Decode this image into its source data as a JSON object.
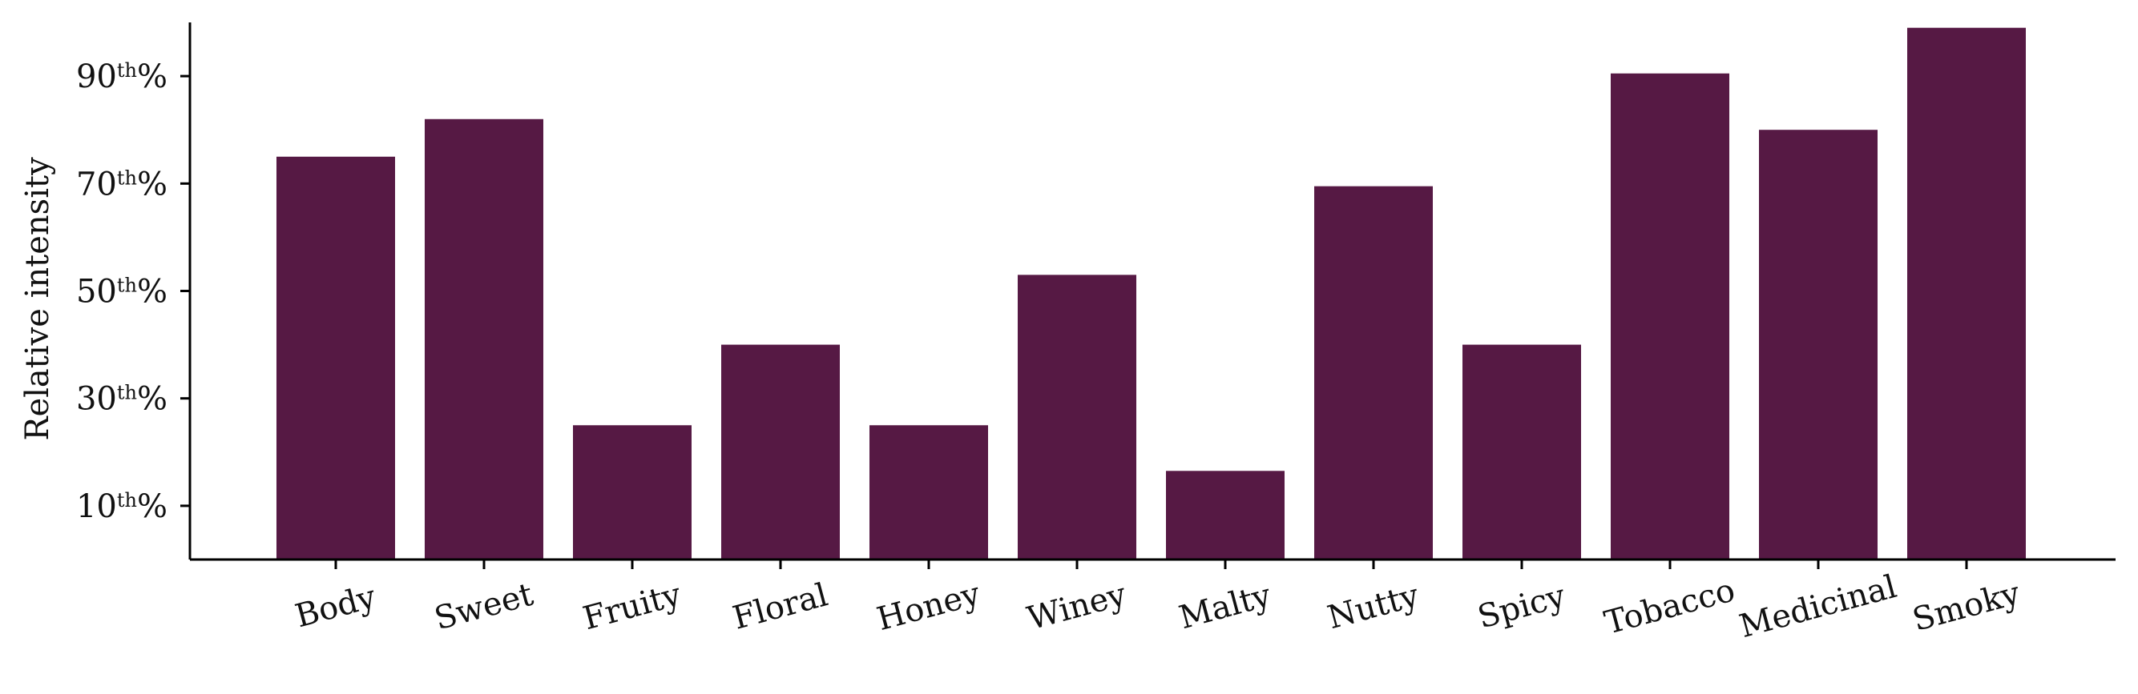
{
  "chart_data": {
    "type": "bar",
    "title": "",
    "xlabel": "",
    "ylabel": "Relative intensity",
    "categories": [
      "Body",
      "Sweet",
      "Fruity",
      "Floral",
      "Honey",
      "Winey",
      "Malty",
      "Nutty",
      "Spicy",
      "Tobacco",
      "Medicinal",
      "Smoky"
    ],
    "values": [
      75,
      82,
      25,
      40,
      25,
      53,
      16.5,
      69.5,
      40,
      90.5,
      80,
      99
    ],
    "ylim": [
      0,
      100
    ],
    "yticks": [
      {
        "value": 10,
        "num": "10",
        "sup": "th",
        "suffix": "%"
      },
      {
        "value": 30,
        "num": "30",
        "sup": "th",
        "suffix": "%"
      },
      {
        "value": 50,
        "num": "50",
        "sup": "th",
        "suffix": "%"
      },
      {
        "value": 70,
        "num": "70",
        "sup": "th",
        "suffix": "%"
      },
      {
        "value": 90,
        "num": "90",
        "sup": "th",
        "suffix": "%"
      }
    ],
    "bar_color": "#561944",
    "grid": false,
    "legend": "none"
  }
}
